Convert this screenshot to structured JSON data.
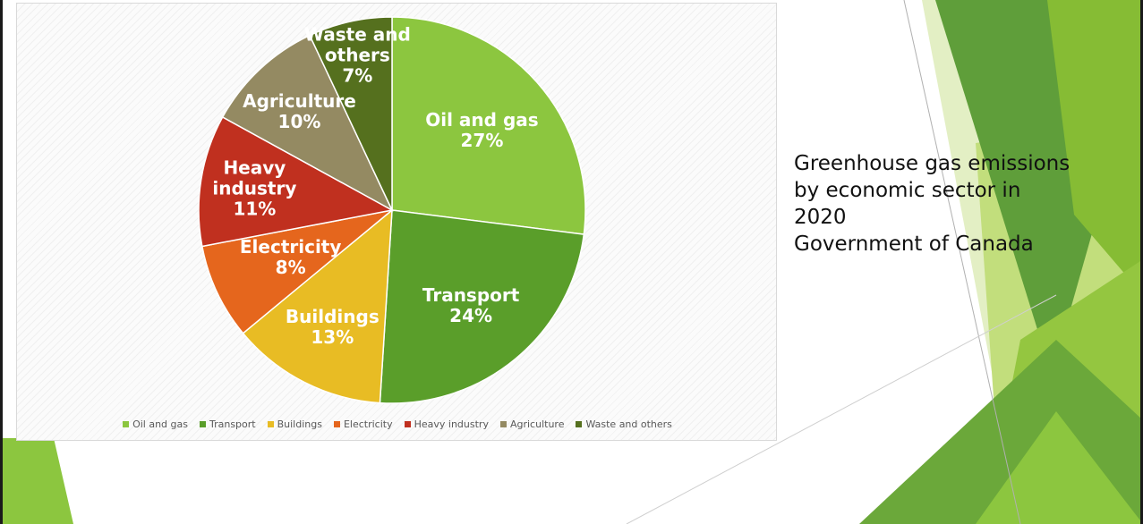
{
  "chart_data": {
    "type": "pie",
    "categories": [
      "Oil and gas",
      "Transport",
      "Buildings",
      "Electricity",
      "Heavy industry",
      "Agriculture",
      "Waste and others"
    ],
    "values": [
      27,
      24,
      13,
      8,
      11,
      10,
      7
    ],
    "unit": "%",
    "data_labels": [
      [
        "Oil and gas",
        "27%"
      ],
      [
        "Transport",
        "24%"
      ],
      [
        "Buildings",
        "13%"
      ],
      [
        "Electricity",
        "8%"
      ],
      [
        "Heavy",
        "industry",
        "11%"
      ],
      [
        "Agriculture",
        "10%"
      ],
      [
        "Waste and",
        "others",
        "7%"
      ]
    ],
    "colors": [
      "#8CC63F",
      "#5A9E2A",
      "#E8BC24",
      "#E5661D",
      "#C0301F",
      "#948A62",
      "#55701E"
    ],
    "legend": {
      "position": "bottom",
      "entries": [
        "Oil and gas",
        "Transport",
        "Buildings",
        "Electricity",
        "Heavy industry",
        "Agriculture",
        "Waste and others"
      ]
    }
  },
  "side_text": {
    "lines": [
      "Greenhouse gas emissions",
      "by economic sector in",
      "2020",
      "Government of Canada"
    ]
  },
  "theme": {
    "decor_colors": [
      "#8CC63F",
      "#5A9E2A",
      "#B5D96B",
      "#DCEBB4"
    ]
  }
}
